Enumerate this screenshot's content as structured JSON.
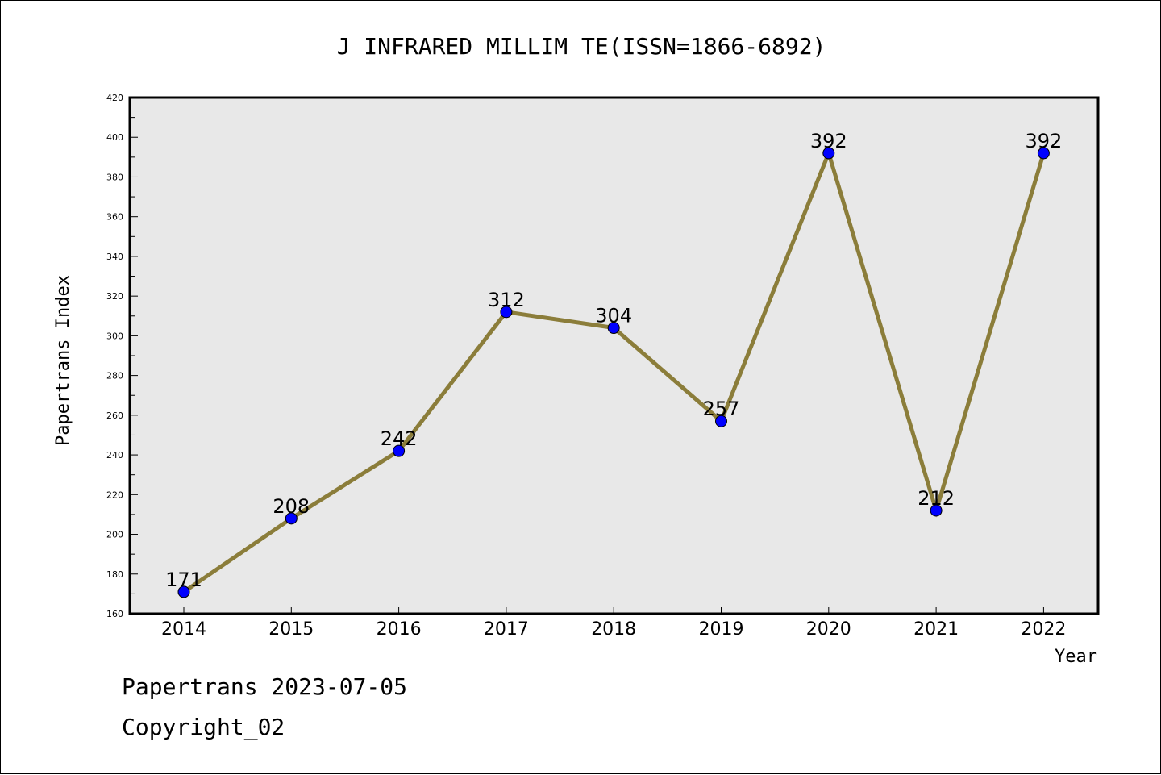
{
  "chart_data": {
    "type": "line",
    "title": "J INFRARED MILLIM TE(ISSN=1866-6892)",
    "xlabel": "Year",
    "ylabel": "Papertrans Index",
    "categories": [
      "2014",
      "2015",
      "2016",
      "2017",
      "2018",
      "2019",
      "2020",
      "2021",
      "2022"
    ],
    "series": [
      {
        "values": [
          171,
          208,
          242,
          312,
          304,
          257,
          392,
          212,
          392
        ]
      }
    ],
    "ylim": [
      160,
      420
    ],
    "yticks": [
      160,
      180,
      200,
      220,
      240,
      260,
      280,
      300,
      320,
      340,
      360,
      380,
      400,
      420
    ],
    "grid": false,
    "line_color": "#8b7d3a",
    "marker_color": "#0000ff",
    "plot_background": "#e8e8e8"
  },
  "footer": {
    "line1": "Papertrans 2023-07-05",
    "line2": "Copyright_02"
  }
}
